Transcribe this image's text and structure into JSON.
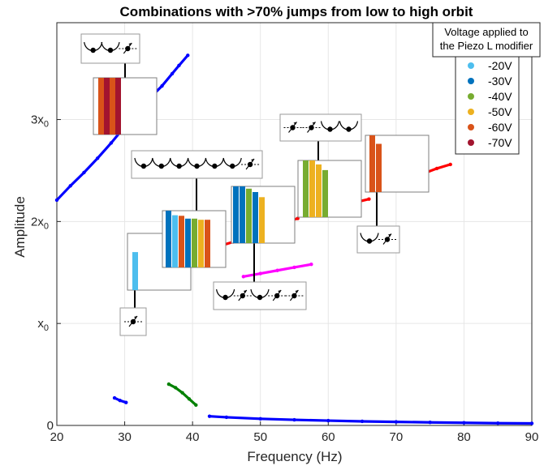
{
  "chart_data": {
    "type": "line",
    "title": "Combinations with >70% jumps from low to high orbit",
    "xlabel": "Frequency (Hz)",
    "ylabel": "Amplitude",
    "xlim": [
      20,
      90
    ],
    "ylim": [
      0,
      3.95
    ],
    "grid": true,
    "x_ticks": [
      20,
      30,
      40,
      50,
      60,
      70,
      80,
      90
    ],
    "y_ticks": [
      {
        "value": 0,
        "base": "0",
        "sub": ""
      },
      {
        "value": 1,
        "base": "x",
        "sub": "0"
      },
      {
        "value": 2,
        "base": "2x",
        "sub": "0"
      },
      {
        "value": 3,
        "base": "3x",
        "sub": "0"
      }
    ],
    "legend": {
      "title_lines": [
        "Voltage applied to",
        "the Piezo L modifier"
      ],
      "placement": "top-right",
      "entries": [
        {
          "label": "-20V",
          "color": "#4DBEEE"
        },
        {
          "label": "-30V",
          "color": "#0072BD"
        },
        {
          "label": "-40V",
          "color": "#77AC30"
        },
        {
          "label": "-50V",
          "color": "#EDB120"
        },
        {
          "label": "-60V",
          "color": "#D95319"
        },
        {
          "label": "-70V",
          "color": "#A2142F"
        }
      ]
    },
    "series": [
      {
        "color": "#0000ff",
        "x": [
          20.0,
          22.0,
          24.0,
          26.0,
          28.0,
          30.0,
          32.0,
          34.0,
          35.5,
          37.0,
          38.0,
          39.3
        ],
        "y": [
          2.21,
          2.35,
          2.48,
          2.62,
          2.77,
          2.93,
          3.08,
          3.23,
          3.33,
          3.45,
          3.53,
          3.63
        ]
      },
      {
        "color": "#0000ff",
        "x": [
          28.5,
          29.3,
          30.2
        ],
        "y": [
          0.27,
          0.245,
          0.225
        ]
      },
      {
        "color": "#008000",
        "x": [
          36.5,
          37.5,
          38.5,
          39.5,
          40.5
        ],
        "y": [
          0.405,
          0.37,
          0.32,
          0.26,
          0.2
        ]
      },
      {
        "color": "#0000ff",
        "x": [
          42.5,
          45,
          50,
          55,
          60,
          65,
          70,
          75,
          80,
          85,
          90
        ],
        "y": [
          0.09,
          0.08,
          0.065,
          0.055,
          0.047,
          0.04,
          0.035,
          0.03,
          0.026,
          0.022,
          0.02
        ]
      },
      {
        "color": "#ff00ff",
        "x": [
          47.5,
          50.0,
          52.5,
          55.0,
          57.5
        ],
        "y": [
          1.46,
          1.49,
          1.52,
          1.55,
          1.58
        ]
      },
      {
        "color": "#ff0000",
        "x": [
          44.5,
          46.0,
          47.5
        ],
        "y": [
          1.77,
          1.8,
          1.83
        ]
      },
      {
        "color": "#ff0000",
        "x": [
          52.5,
          54.0,
          55.5
        ],
        "y": [
          1.97,
          2.0,
          2.03
        ]
      },
      {
        "color": "#ff0000",
        "x": [
          61.0,
          63.5,
          66.0
        ],
        "y": [
          2.13,
          2.18,
          2.22
        ]
      },
      {
        "color": "#ff0000",
        "x": [
          69.0,
          71.5,
          74.0,
          76.0,
          78.0
        ],
        "y": [
          2.34,
          2.41,
          2.47,
          2.52,
          2.56
        ]
      }
    ],
    "insets": [
      {
        "bars": [
          1.0,
          1.0,
          1.0,
          1.0
        ],
        "colors": [
          "#D95319",
          "#A2142F",
          "#D95319",
          "#A2142F"
        ]
      },
      {
        "bars": [
          0.67
        ],
        "colors": [
          "#4DBEEE"
        ]
      },
      {
        "bars": [
          1.0,
          0.92,
          0.91,
          0.86,
          0.86,
          0.84,
          0.84
        ],
        "colors": [
          "#0072BD",
          "#4DBEEE",
          "#D95319",
          "#0072BD",
          "#77AC30",
          "#EDB120",
          "#D95319"
        ]
      },
      {
        "bars": [
          1.0,
          1.0,
          0.96,
          0.9,
          0.81
        ],
        "colors": [
          "#0072BD",
          "#0072BD",
          "#77AC30",
          "#0072BD",
          "#EDB120"
        ]
      },
      {
        "bars": [
          1.0,
          1.0,
          0.93,
          0.83
        ],
        "colors": [
          "#77AC30",
          "#EDB120",
          "#EDB120",
          "#77AC30"
        ]
      },
      {
        "bars": [
          1.0,
          0.85
        ],
        "colors": [
          "#D95319",
          "#D95319"
        ]
      }
    ],
    "icon_strips": [
      {
        "icons": [
          "well-ball",
          "well-ball",
          "ball-arrow"
        ]
      },
      {
        "icons": [
          "well-ball",
          "well-ball",
          "well-ball",
          "well-ball",
          "well-ball",
          "well-ball",
          "ball-arrow"
        ]
      },
      {
        "icons": [
          "ball-arrow"
        ]
      },
      {
        "icons": [
          "well-ball",
          "ball-arrow",
          "well-ball",
          "ball-arrow",
          "ball-arrow"
        ]
      },
      {
        "icons": [
          "ball-arrow",
          "ball-arrow",
          "well-ball",
          "well-ball"
        ]
      },
      {
        "icons": [
          "well-ball",
          "ball-arrow"
        ]
      }
    ]
  }
}
